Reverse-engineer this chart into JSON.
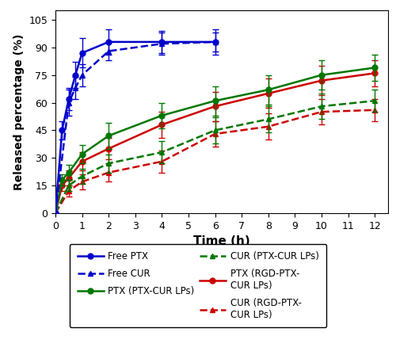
{
  "free_ptx_time": [
    0,
    0.25,
    0.5,
    0.75,
    1,
    2,
    4,
    6
  ],
  "free_ptx_vals": [
    0,
    45,
    62,
    75,
    87,
    93,
    93,
    93
  ],
  "free_ptx_errs": [
    0,
    5,
    6,
    7,
    8,
    7,
    6,
    5
  ],
  "free_cur_time": [
    0,
    0.5,
    0.75,
    1,
    2,
    4,
    6
  ],
  "free_cur_vals": [
    0,
    60,
    68,
    75,
    88,
    92,
    93
  ],
  "free_cur_errs": [
    0,
    7,
    6,
    6,
    5,
    6,
    7
  ],
  "ptx_lp_time": [
    0,
    0.25,
    0.5,
    1,
    2,
    4,
    6,
    8,
    10,
    12
  ],
  "ptx_lp_vals": [
    0,
    18,
    22,
    32,
    42,
    53,
    61,
    67,
    75,
    79
  ],
  "ptx_lp_errs": [
    0,
    3,
    4,
    5,
    7,
    7,
    8,
    8,
    8,
    7
  ],
  "cur_lp_time": [
    0,
    0.5,
    1,
    2,
    4,
    6,
    8,
    10,
    12
  ],
  "cur_lp_vals": [
    0,
    15,
    20,
    27,
    33,
    45,
    51,
    58,
    61
  ],
  "cur_lp_errs": [
    0,
    3,
    4,
    5,
    6,
    7,
    7,
    7,
    6
  ],
  "ptx_rgd_time": [
    0,
    0.25,
    0.5,
    1,
    2,
    4,
    6,
    8,
    10,
    12
  ],
  "ptx_rgd_vals": [
    0,
    15,
    19,
    28,
    35,
    48,
    58,
    65,
    72,
    76
  ],
  "ptx_rgd_errs": [
    0,
    3,
    4,
    5,
    6,
    7,
    8,
    8,
    8,
    7
  ],
  "cur_rgd_time": [
    0,
    0.5,
    1,
    2,
    4,
    6,
    8,
    10,
    12
  ],
  "cur_rgd_vals": [
    0,
    12,
    17,
    22,
    28,
    43,
    47,
    55,
    56
  ],
  "cur_rgd_errs": [
    0,
    3,
    4,
    5,
    6,
    7,
    7,
    7,
    6
  ],
  "blue": "#0000CC",
  "green": "#007700",
  "red": "#CC0000",
  "ylabel": "Released percentage (%)",
  "xlabel": "Time (h)",
  "ylim": [
    0,
    110
  ],
  "xlim": [
    0,
    12.5
  ],
  "yticks": [
    0,
    15,
    30,
    45,
    60,
    75,
    90,
    105
  ],
  "xticks": [
    0,
    1,
    2,
    3,
    4,
    5,
    6,
    7,
    8,
    9,
    10,
    11,
    12
  ]
}
